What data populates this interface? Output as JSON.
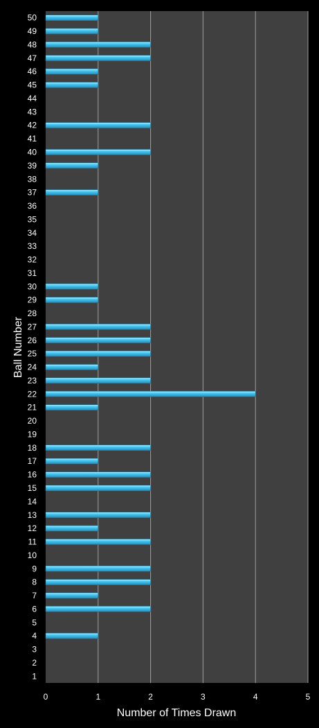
{
  "chart_data": {
    "type": "bar",
    "orientation": "horizontal",
    "title": "",
    "xlabel": "Number of Times Drawn",
    "ylabel": "Ball Number",
    "xlim": [
      0,
      5
    ],
    "xticks": [
      0,
      1,
      2,
      3,
      4,
      5
    ],
    "grid": true,
    "legend": "none",
    "colors": {
      "background": "#000000",
      "plot_area": "#404040",
      "bar": "#29b6e6",
      "bar_highlight": "#bfefff",
      "grid": "#a0a0a0",
      "text": "#ffffff"
    },
    "categories": [
      "1",
      "2",
      "3",
      "4",
      "5",
      "6",
      "7",
      "8",
      "9",
      "10",
      "11",
      "12",
      "13",
      "14",
      "15",
      "16",
      "17",
      "18",
      "19",
      "20",
      "21",
      "22",
      "23",
      "24",
      "25",
      "26",
      "27",
      "28",
      "29",
      "30",
      "31",
      "32",
      "33",
      "34",
      "35",
      "36",
      "37",
      "38",
      "39",
      "40",
      "41",
      "42",
      "43",
      "44",
      "45",
      "46",
      "47",
      "48",
      "49",
      "50"
    ],
    "values": [
      0,
      0,
      0,
      1,
      0,
      2,
      1,
      2,
      2,
      0,
      2,
      1,
      2,
      0,
      2,
      2,
      1,
      2,
      0,
      0,
      1,
      4,
      2,
      1,
      2,
      2,
      2,
      0,
      1,
      1,
      0,
      0,
      0,
      0,
      0,
      0,
      1,
      0,
      1,
      2,
      0,
      2,
      0,
      0,
      1,
      1,
      2,
      2,
      1,
      1
    ]
  }
}
